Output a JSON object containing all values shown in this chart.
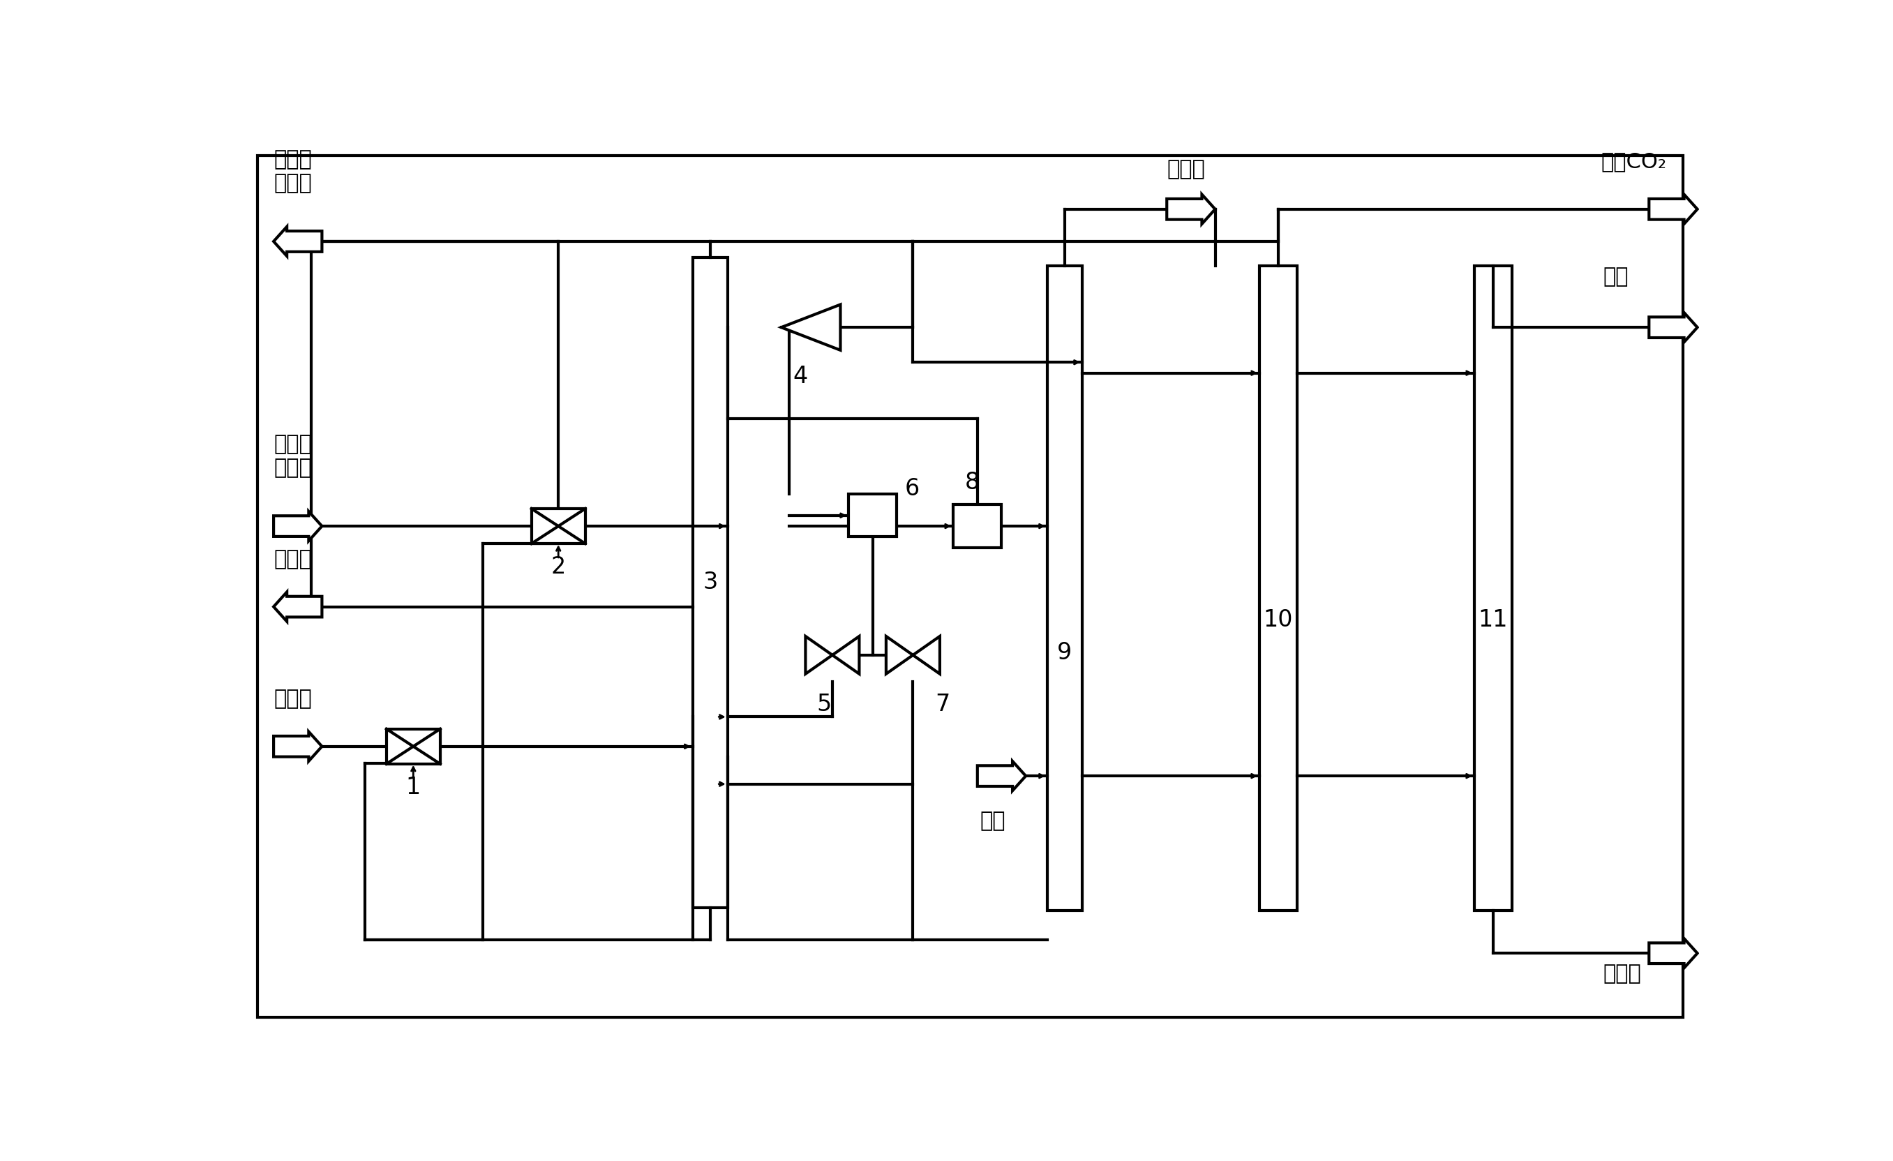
{
  "labels": {
    "qu_chu_gang": "去储罐\n吸收剂",
    "zi_chu_gang": "自储罐\n吸收剂",
    "jing_hua_qi": "净化气",
    "yuan_liao_qi": "原料气",
    "xi_di_shui": "洗涤水",
    "hui_shou_co2": "回收CO₂",
    "wei_qi": "尾气",
    "dan_qi": "氮气",
    "qu_hui_shou": "去回收",
    "n1": "1",
    "n2": "2",
    "n3": "3",
    "n4": "4",
    "n5": "5",
    "n6": "6",
    "n7": "7",
    "n8": "8",
    "n9": "9",
    "n10": "10",
    "n11": "11"
  }
}
